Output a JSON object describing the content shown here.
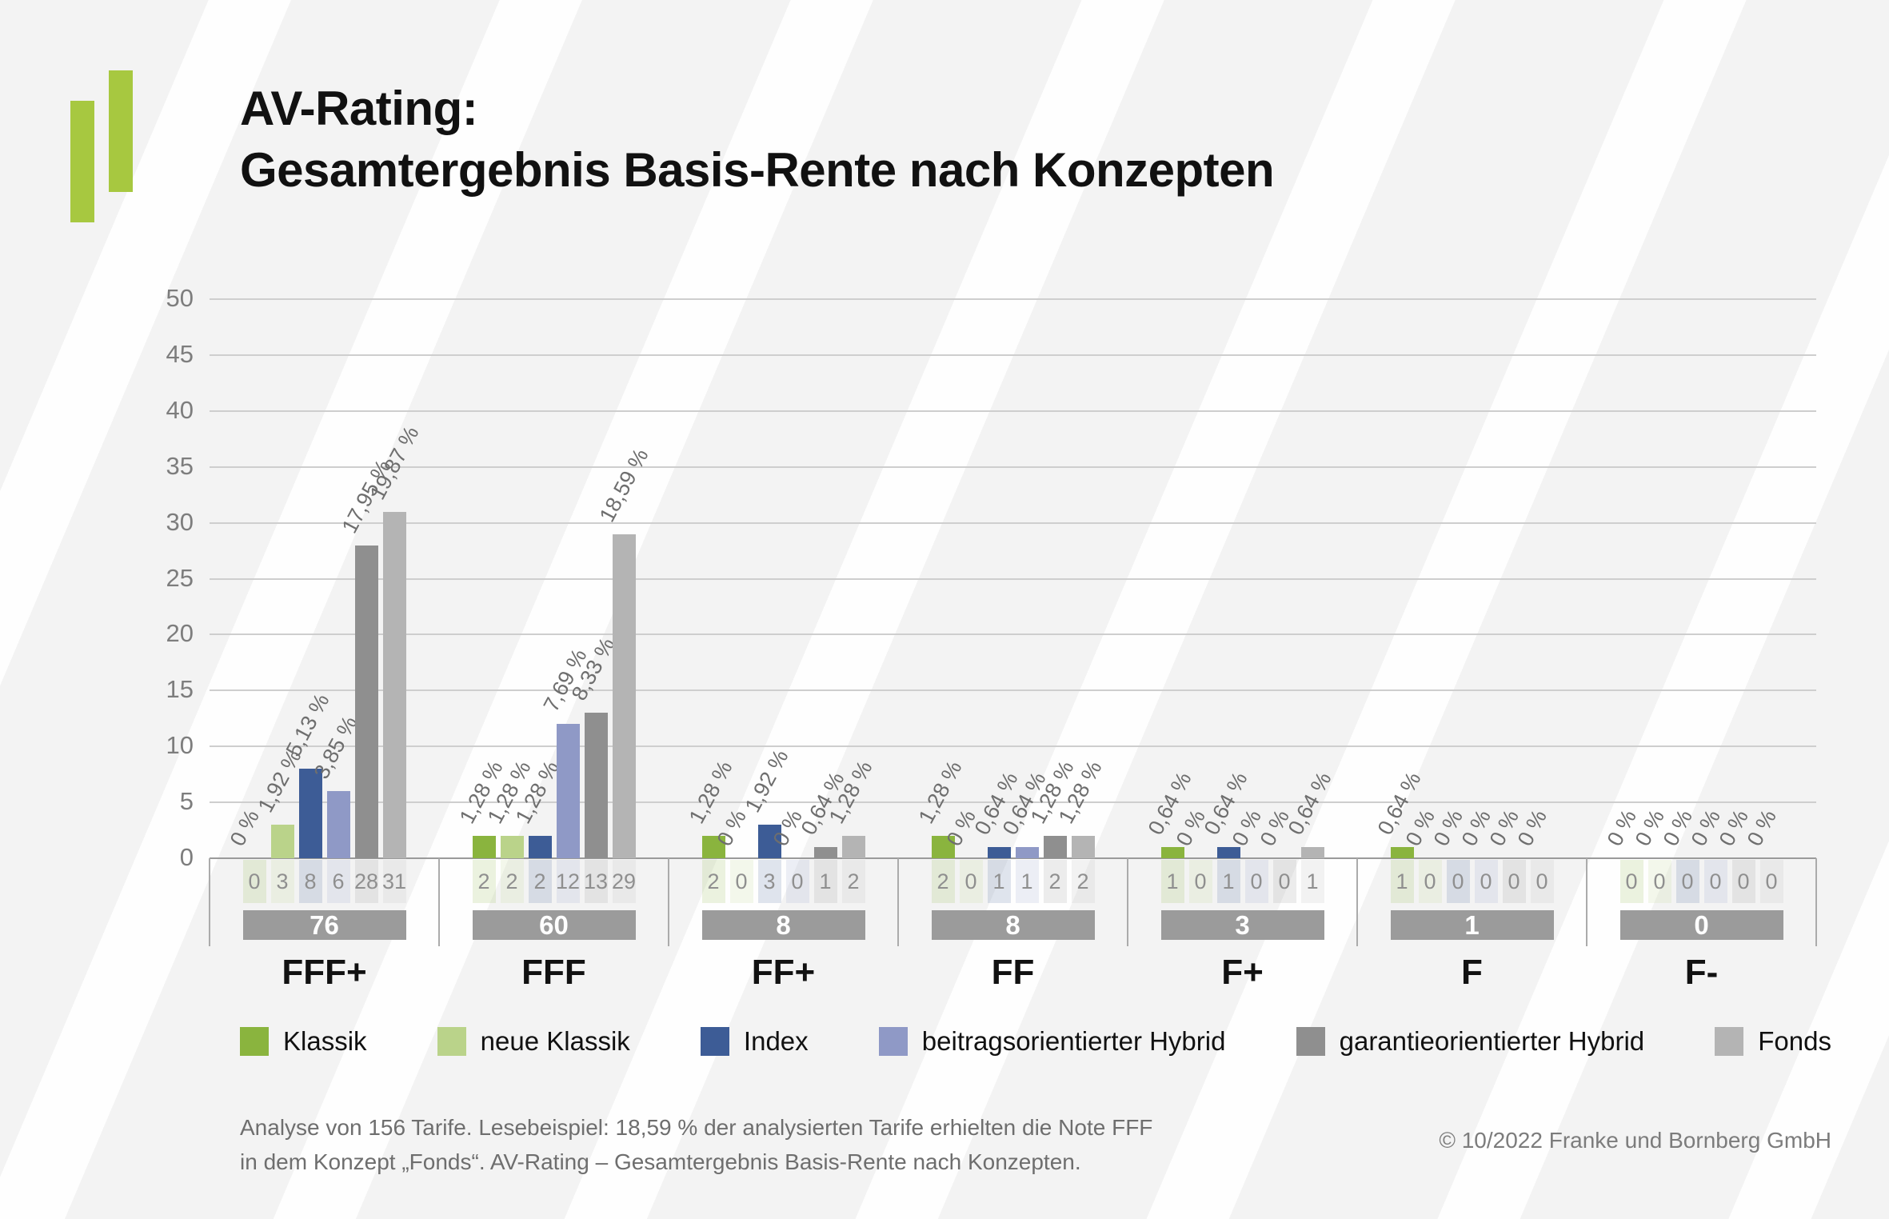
{
  "header": {
    "title_line1": "AV-Rating:",
    "title_line2": "Gesamtergebnis Basis-Rente nach Konzepten"
  },
  "chart_data": {
    "type": "bar",
    "title": "AV-Rating: Gesamtergebnis Basis-Rente nach Konzepten",
    "xlabel": "",
    "ylabel": "",
    "ylim": [
      0,
      50
    ],
    "yticks": [
      0,
      5,
      10,
      15,
      20,
      25,
      30,
      35,
      40,
      45,
      50
    ],
    "grid": true,
    "legend_position": "bottom",
    "categories": [
      "FFF+",
      "FFF",
      "FF+",
      "FF",
      "F+",
      "F",
      "F-"
    ],
    "series": [
      {
        "name": "Klassik",
        "color": "#8ab43e",
        "values": [
          0,
          2,
          2,
          2,
          1,
          1,
          0
        ],
        "percent_labels": [
          "0 %",
          "1,28 %",
          "1,28 %",
          "1,28 %",
          "0,64 %",
          "0,64 %",
          "0 %"
        ]
      },
      {
        "name": "neue Klassik",
        "color": "#bad38a",
        "values": [
          3,
          2,
          0,
          0,
          0,
          0,
          0
        ],
        "percent_labels": [
          "1,92 %",
          "1,28 %",
          "0 %",
          "0 %",
          "0 %",
          "0 %",
          "0 %"
        ]
      },
      {
        "name": "Index",
        "color": "#3d5c96",
        "values": [
          8,
          2,
          3,
          1,
          1,
          0,
          0
        ],
        "percent_labels": [
          "5,13 %",
          "1,28 %",
          "1,92 %",
          "0,64 %",
          "0,64 %",
          "0 %",
          "0 %"
        ]
      },
      {
        "name": "beitragsorientierter Hybrid",
        "color": "#8f99c6",
        "values": [
          6,
          12,
          0,
          1,
          0,
          0,
          0
        ],
        "percent_labels": [
          "3,85 %",
          "7,69 %",
          "0 %",
          "0,64 %",
          "0 %",
          "0 %",
          "0 %"
        ]
      },
      {
        "name": "garantieorientierter Hybrid",
        "color": "#8f8f8f",
        "values": [
          28,
          13,
          1,
          2,
          0,
          0,
          0
        ],
        "percent_labels": [
          "17,95 %",
          "8,33 %",
          "0,64 %",
          "1,28 %",
          "0 %",
          "0 %",
          "0 %"
        ]
      },
      {
        "name": "Fonds",
        "color": "#b4b4b4",
        "values": [
          31,
          29,
          2,
          2,
          1,
          0,
          0
        ],
        "percent_labels": [
          "19,87 %",
          "18,59 %",
          "1,28 %",
          "1,28 %",
          "0,64 %",
          "0 %",
          "0 %"
        ]
      }
    ],
    "totals": [
      76,
      60,
      8,
      8,
      3,
      1,
      0
    ]
  },
  "footer": {
    "line1": "Analyse von 156 Tarife. Lesebeispiel: 18,59 % der analysierten Tarife erhielten die Note FFF",
    "line2": "in dem Konzept „Fonds“. AV-Rating – Gesamtergebnis Basis-Rente nach Konzepten.",
    "copyright": "© 10/2022 Franke und Bornberg GmbH"
  }
}
